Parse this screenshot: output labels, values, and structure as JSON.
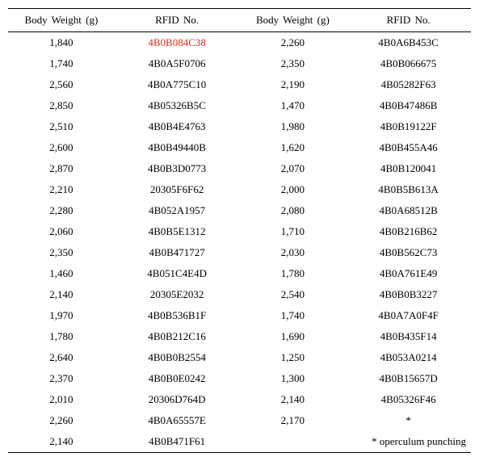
{
  "table": {
    "headers": [
      "Body Weight (g)",
      "RFID No.",
      "Body Weight (g)",
      "RFID No."
    ],
    "rows": [
      {
        "c": [
          "1,840",
          "4B0B084C38",
          "2,260",
          "4B0A6B453C"
        ],
        "hi": [
          false,
          true,
          false,
          false
        ]
      },
      {
        "c": [
          "1,740",
          "4B0A5F0706",
          "2,350",
          "4B0B066675"
        ],
        "hi": [
          false,
          false,
          false,
          false
        ]
      },
      {
        "c": [
          "2,560",
          "4B0A775C10",
          "2,190",
          "4B05282F63"
        ],
        "hi": [
          false,
          false,
          false,
          false
        ]
      },
      {
        "c": [
          "2,850",
          "4B05326B5C",
          "1,470",
          "4B0B47486B"
        ],
        "hi": [
          false,
          false,
          false,
          false
        ]
      },
      {
        "c": [
          "2,510",
          "4B0B4E4763",
          "1,980",
          "4B0B19122F"
        ],
        "hi": [
          false,
          false,
          false,
          false
        ]
      },
      {
        "c": [
          "2,600",
          "4B0B49440B",
          "1,620",
          "4B0B455A46"
        ],
        "hi": [
          false,
          false,
          false,
          false
        ]
      },
      {
        "c": [
          "2,870",
          "4B0B3D0773",
          "2,070",
          "4B0B120041"
        ],
        "hi": [
          false,
          false,
          false,
          false
        ]
      },
      {
        "c": [
          "2,210",
          "20305F6F62",
          "2,000",
          "4B0B5B613A"
        ],
        "hi": [
          false,
          false,
          false,
          false
        ]
      },
      {
        "c": [
          "2,280",
          "4B052A1957",
          "2,080",
          "4B0A68512B"
        ],
        "hi": [
          false,
          false,
          false,
          false
        ]
      },
      {
        "c": [
          "2,060",
          "4B0B5E1312",
          "1,710",
          "4B0B216B62"
        ],
        "hi": [
          false,
          false,
          false,
          false
        ]
      },
      {
        "c": [
          "2,350",
          "4B0B471727",
          "2,030",
          "4B0B562C73"
        ],
        "hi": [
          false,
          false,
          false,
          false
        ]
      },
      {
        "c": [
          "1,460",
          "4B051C4E4D",
          "1,780",
          "4B0A761E49"
        ],
        "hi": [
          false,
          false,
          false,
          false
        ]
      },
      {
        "c": [
          "2,140",
          "20305E2032",
          "2,540",
          "4B0B0B3227"
        ],
        "hi": [
          false,
          false,
          false,
          false
        ]
      },
      {
        "c": [
          "1,970",
          "4B0B536B1F",
          "1,740",
          "4B0A7A0F4F"
        ],
        "hi": [
          false,
          false,
          false,
          false
        ]
      },
      {
        "c": [
          "1,780",
          "4B0B212C16",
          "1,690",
          "4B0B435F14"
        ],
        "hi": [
          false,
          false,
          false,
          false
        ]
      },
      {
        "c": [
          "2,640",
          "4B0B0B2554",
          "1,250",
          "4B053A0214"
        ],
        "hi": [
          false,
          false,
          false,
          false
        ]
      },
      {
        "c": [
          "2,370",
          "4B0B0E0242",
          "1,300",
          "4B0B15657D"
        ],
        "hi": [
          false,
          false,
          false,
          false
        ]
      },
      {
        "c": [
          "2,010",
          "20306D764D",
          "2,140",
          "4B05326F46"
        ],
        "hi": [
          false,
          false,
          false,
          false
        ]
      },
      {
        "c": [
          "2,260",
          "4B0A65557E",
          "2,170",
          "*"
        ],
        "hi": [
          false,
          false,
          false,
          false
        ]
      },
      {
        "c": [
          "2,140",
          "4B0B471F61",
          "",
          "* operculum punching"
        ],
        "hi": [
          false,
          false,
          false,
          false
        ]
      }
    ],
    "footnote_align_last_right": true
  }
}
